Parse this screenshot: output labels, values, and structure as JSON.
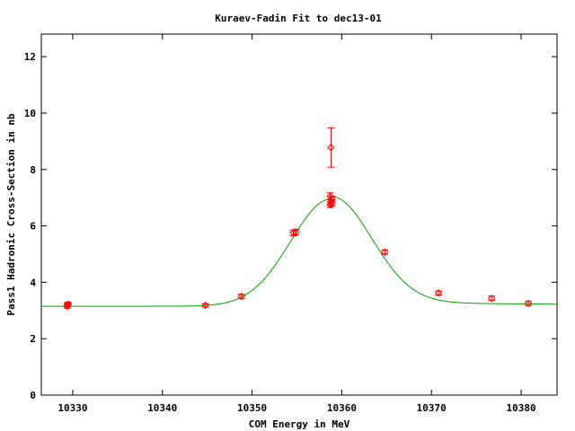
{
  "chart_data": {
    "type": "scatter",
    "title": "Kuraev-Fadin Fit to dec13-01",
    "xlabel": "COM Energy in MeV",
    "ylabel": "Pass1 Hadronic Cross-Section in nb",
    "xlim": [
      10326.5,
      10384
    ],
    "ylim": [
      0,
      12.8
    ],
    "xticks": [
      "10330",
      "10340",
      "10350",
      "10360",
      "10370",
      "10380"
    ],
    "yticks": [
      "0",
      "2",
      "4",
      "6",
      "8",
      "10",
      "12"
    ],
    "grid": false,
    "colors": {
      "data": "#ff0000",
      "fit": "#00a000",
      "frame": "#000000"
    },
    "series": [
      {
        "kind": "data-with-errors",
        "points": [
          {
            "x": 10329.4,
            "y": 3.15,
            "err": 0.07
          },
          {
            "x": 10329.4,
            "y": 3.2,
            "err": 0.07
          },
          {
            "x": 10329.5,
            "y": 3.22,
            "err": 0.07
          },
          {
            "x": 10344.8,
            "y": 3.18,
            "err": 0.06
          },
          {
            "x": 10348.8,
            "y": 3.5,
            "err": 0.07
          },
          {
            "x": 10354.6,
            "y": 5.75,
            "err": 0.1
          },
          {
            "x": 10354.9,
            "y": 5.78,
            "err": 0.1
          },
          {
            "x": 10358.7,
            "y": 6.75,
            "err": 0.1
          },
          {
            "x": 10358.8,
            "y": 6.85,
            "err": 0.1
          },
          {
            "x": 10358.9,
            "y": 6.95,
            "err": 0.1
          },
          {
            "x": 10358.7,
            "y": 7.05,
            "err": 0.12
          },
          {
            "x": 10358.9,
            "y": 6.8,
            "err": 0.1
          },
          {
            "x": 10358.8,
            "y": 8.78,
            "err": 0.7
          },
          {
            "x": 10364.8,
            "y": 5.07,
            "err": 0.08
          },
          {
            "x": 10370.8,
            "y": 3.62,
            "err": 0.07
          },
          {
            "x": 10376.7,
            "y": 3.43,
            "err": 0.08
          },
          {
            "x": 10380.8,
            "y": 3.25,
            "err": 0.07
          }
        ]
      },
      {
        "kind": "fit-curve",
        "baseline": 3.15,
        "peak_x": 10358.8,
        "peak_height": 3.8,
        "sigma": 4.5,
        "tail_height": 0.17,
        "tail_decay": 30
      }
    ]
  }
}
